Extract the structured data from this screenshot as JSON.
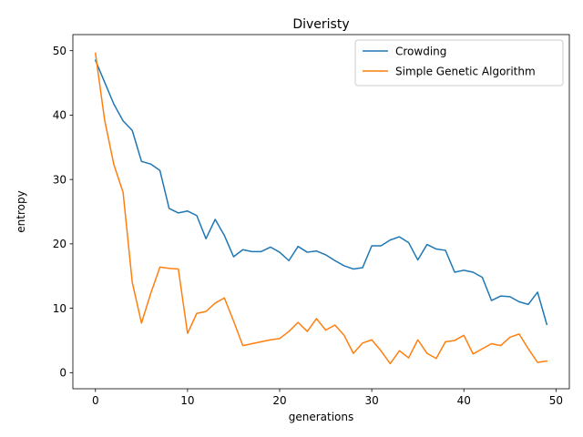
{
  "chart_data": {
    "type": "line",
    "title": "Diveristy",
    "xlabel": "generations",
    "ylabel": "entropy",
    "xlim": [
      -2.45,
      51.45
    ],
    "ylim": [
      -2.5,
      52.5
    ],
    "xticks": [
      0,
      10,
      20,
      30,
      40,
      50
    ],
    "yticks": [
      0,
      10,
      20,
      30,
      40,
      50
    ],
    "grid": false,
    "legend_position": "top-right",
    "x": [
      0,
      1,
      2,
      3,
      4,
      5,
      6,
      7,
      8,
      9,
      10,
      11,
      12,
      13,
      14,
      15,
      16,
      17,
      18,
      19,
      20,
      21,
      22,
      23,
      24,
      25,
      26,
      27,
      28,
      29,
      30,
      31,
      32,
      33,
      34,
      35,
      36,
      37,
      38,
      39,
      40,
      41,
      42,
      43,
      44,
      45,
      46,
      47,
      48,
      49
    ],
    "series": [
      {
        "name": "Crowding",
        "color": "#1f77b4",
        "values": [
          48.5,
          45.1,
          41.7,
          39.1,
          37.6,
          32.8,
          32.4,
          31.4,
          25.5,
          24.8,
          25.1,
          24.4,
          20.8,
          23.8,
          21.3,
          18.0,
          19.1,
          18.8,
          18.8,
          19.5,
          18.7,
          17.4,
          19.6,
          18.7,
          18.9,
          18.3,
          17.4,
          16.6,
          16.1,
          16.3,
          19.7,
          19.7,
          20.6,
          21.1,
          20.2,
          17.5,
          19.9,
          19.2,
          19.0,
          15.6,
          15.9,
          15.6,
          14.8,
          11.2,
          11.9,
          11.8,
          11.0,
          10.6,
          12.5,
          7.5
        ]
      },
      {
        "name": "Simple Genetic Algorithm",
        "color": "#ff7f0e",
        "values": [
          49.6,
          39.2,
          32.3,
          28.0,
          14.0,
          7.7,
          12.3,
          16.4,
          16.2,
          16.1,
          6.1,
          9.2,
          9.5,
          10.8,
          11.6,
          8.0,
          4.2,
          4.5,
          4.8,
          5.1,
          5.3,
          6.4,
          7.8,
          6.4,
          8.4,
          6.6,
          7.4,
          5.8,
          3.0,
          4.6,
          5.1,
          3.4,
          1.4,
          3.4,
          2.3,
          5.1,
          3.0,
          2.2,
          4.8,
          5.0,
          5.8,
          2.9,
          3.7,
          4.5,
          4.2,
          5.5,
          6.0,
          3.7,
          1.6,
          1.8
        ]
      }
    ]
  }
}
